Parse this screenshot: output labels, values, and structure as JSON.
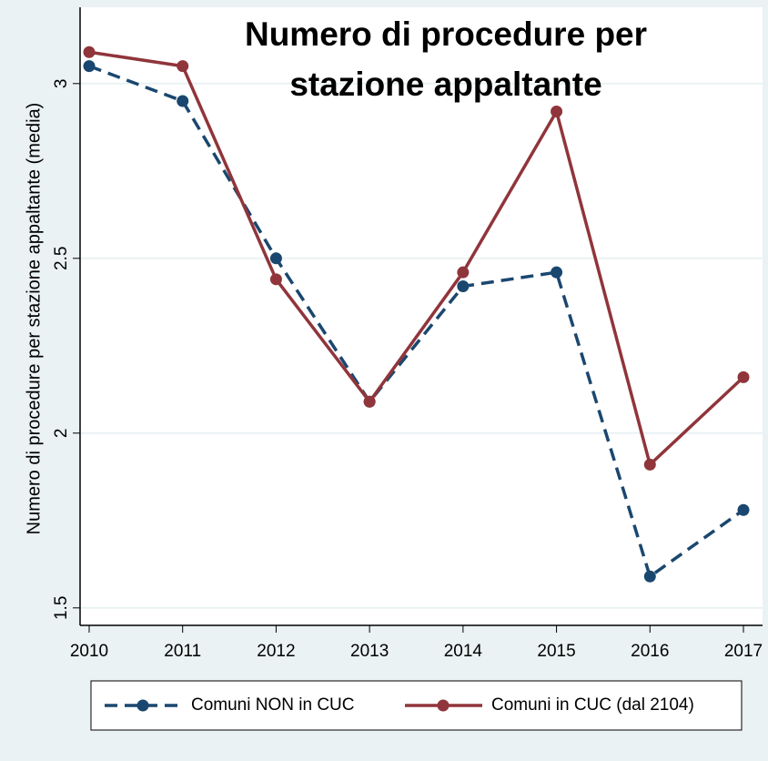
{
  "chart_data": {
    "type": "line",
    "title": [
      "Numero di procedure per",
      "stazione appaltante"
    ],
    "ylabel": "Numero di procedure per stazione appaltante (media)",
    "x": [
      2010,
      2011,
      2012,
      2013,
      2014,
      2015,
      2016,
      2017
    ],
    "xlim": [
      2010,
      2017
    ],
    "xticks": [
      2010,
      2011,
      2012,
      2013,
      2014,
      2015,
      2016,
      2017
    ],
    "ylim": [
      1.45,
      3.2
    ],
    "yticks": [
      1.5,
      2,
      2.5,
      3
    ],
    "grid": true,
    "series": [
      {
        "name": "Comuni NON in CUC",
        "color": "#1a476f",
        "line_style": "dashed",
        "values": [
          3.05,
          2.95,
          2.5,
          2.09,
          2.42,
          2.46,
          1.59,
          1.78
        ]
      },
      {
        "name": "Comuni in CUC (dal 2104)",
        "color": "#90353b",
        "line_style": "solid",
        "values": [
          3.09,
          3.05,
          2.44,
          2.09,
          2.46,
          2.92,
          1.91,
          2.16
        ]
      }
    ]
  }
}
